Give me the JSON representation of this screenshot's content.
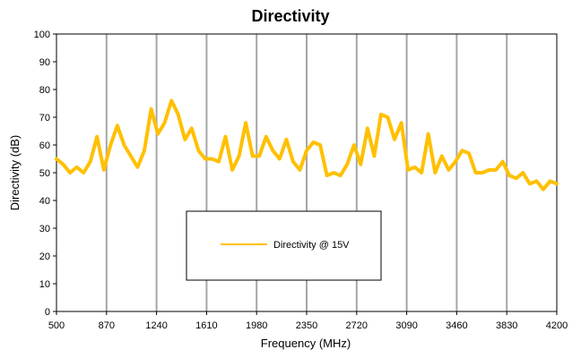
{
  "chart_data": {
    "type": "line",
    "title": "Directivity",
    "xlabel": "Frequency (MHz)",
    "ylabel": "Directivity (dB)",
    "xlim": [
      500,
      4200
    ],
    "ylim": [
      0,
      100
    ],
    "x_ticks": [
      "500",
      "870",
      "1240",
      "1610",
      "1980",
      "2350",
      "2720",
      "3090",
      "3460",
      "3830",
      "4200"
    ],
    "y_ticks": [
      "0",
      "10",
      "20",
      "30",
      "40",
      "50",
      "60",
      "70",
      "80",
      "90",
      "100"
    ],
    "grid": "vertical",
    "legend_position": "center",
    "series": [
      {
        "name": "Directivity @ 15V",
        "color": "#ffc000",
        "x": [
          500,
          550,
          600,
          650,
          700,
          750,
          800,
          850,
          900,
          950,
          1000,
          1050,
          1100,
          1150,
          1200,
          1250,
          1300,
          1350,
          1400,
          1450,
          1500,
          1550,
          1600,
          1650,
          1700,
          1750,
          1800,
          1850,
          1900,
          1950,
          2000,
          2050,
          2100,
          2150,
          2200,
          2250,
          2300,
          2350,
          2400,
          2450,
          2500,
          2550,
          2600,
          2650,
          2700,
          2750,
          2800,
          2850,
          2900,
          2950,
          3000,
          3050,
          3100,
          3150,
          3200,
          3250,
          3300,
          3350,
          3400,
          3450,
          3500,
          3550,
          3600,
          3650,
          3700,
          3750,
          3800,
          3850,
          3900,
          3950,
          4000,
          4050,
          4100,
          4150,
          4200
        ],
        "y": [
          55,
          53,
          50,
          52,
          50,
          54,
          63,
          51,
          60,
          67,
          60,
          56,
          52,
          58,
          73,
          64,
          68,
          76,
          71,
          62,
          66,
          58,
          55,
          55,
          54,
          63,
          51,
          56,
          68,
          56,
          56,
          63,
          58,
          55,
          62,
          54,
          51,
          58,
          61,
          60,
          49,
          50,
          49,
          53,
          60,
          53,
          66,
          56,
          71,
          70,
          62,
          68,
          51,
          52,
          50,
          64,
          50,
          56,
          51,
          54,
          58,
          57,
          50,
          50,
          51,
          51,
          54,
          49,
          48,
          50,
          46,
          47,
          44,
          47,
          46
        ]
      }
    ]
  }
}
